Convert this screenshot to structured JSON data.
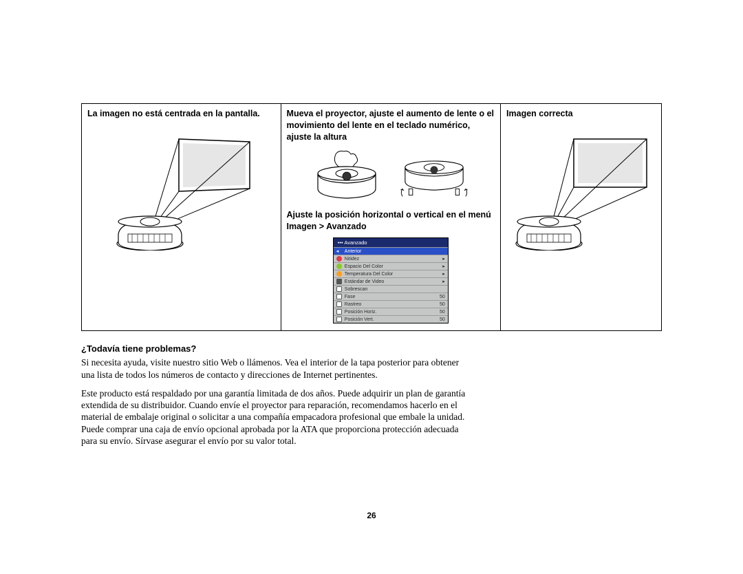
{
  "table": {
    "col1": {
      "heading": "La imagen no está centrada en la pantalla."
    },
    "col2": {
      "heading": "Mueva el proyector, ajuste el aumento de lente o el movimiento del lente en el teclado numérico, ajuste la altura",
      "subheading": "Ajuste la posición horizontal o vertical en el menú Imagen > Avanzado",
      "menu": {
        "title": "••• Avanzado",
        "title_bg": "#1a2a6c",
        "bg": "#c5c7c7",
        "items": [
          {
            "icon_color": "#2a50c8",
            "label": "Anterior",
            "highlight": true
          },
          {
            "icon_color": "#e63946",
            "label": "Nitidez",
            "arrow": "▸"
          },
          {
            "icon_color": "#8ac926",
            "label": "Espacio Del Color",
            "arrow": "▸"
          },
          {
            "icon_color": "#ff9f1c",
            "label": "Temperatura Del Color",
            "arrow": "▸"
          },
          {
            "icon_color": "#555555",
            "label": "Estándar de Video",
            "arrow": "▸"
          },
          {
            "icon_color": "#555555",
            "label": "Sobrescan",
            "value": ""
          },
          {
            "icon_color": "#555555",
            "label": "Fase",
            "value": "50"
          },
          {
            "icon_color": "#555555",
            "label": "Rastreo",
            "value": "50"
          },
          {
            "icon_color": "#555555",
            "label": "Posición Horiz.",
            "value": "50"
          },
          {
            "icon_color": "#555555",
            "label": "Posición Vert.",
            "value": "50"
          }
        ]
      }
    },
    "col3": {
      "heading": "Imagen correcta"
    }
  },
  "body": {
    "heading": "¿Todavía tiene problemas?",
    "para1": "Si necesita ayuda, visite nuestro sitio Web o llámenos. Vea el interior de la tapa posterior para obtener una lista de todos los números de contacto y direcciones de Internet pertinentes.",
    "para2": "Este producto está respaldado por una garantía limitada de dos años. Puede adquirir un plan de garantía extendida de su distribuidor. Cuando envíe el proyector para reparación, recomendamos hacerlo en el material de embalaje original o solicitar a una compañía empacadora profesional que embale la unidad. Puede comprar una caja de envío opcional aprobada por la ATA que proporciona protección adecuada para su envío. Sírvase asegurar el envío por su valor total."
  },
  "page_number": "26",
  "illustration": {
    "screen_fill": "#e6e6e6",
    "line_color": "#000000"
  }
}
